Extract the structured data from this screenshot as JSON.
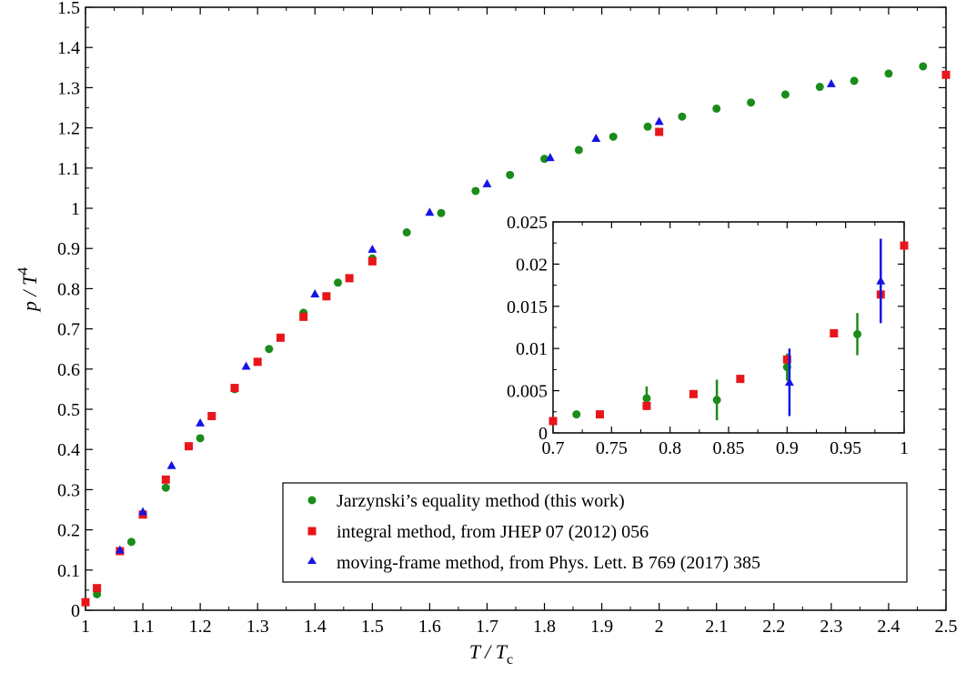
{
  "chart_data": [
    {
      "type": "scatter",
      "xlabel": {
        "main": "T / T",
        "sub": "c"
      },
      "ylabel": {
        "main": "p / T",
        "sup": "4"
      },
      "xlim": [
        1.0,
        2.5
      ],
      "ylim": [
        0,
        1.5
      ],
      "xticks": [
        "1",
        "1.1",
        "1.2",
        "1.3",
        "1.4",
        "1.5",
        "1.6",
        "1.7",
        "1.8",
        "1.9",
        "2",
        "2.1",
        "2.2",
        "2.3",
        "2.4",
        "2.5"
      ],
      "yticks": [
        "0",
        "0.1",
        "0.2",
        "0.3",
        "0.4",
        "0.5",
        "0.6",
        "0.7",
        "0.8",
        "0.9",
        "1",
        "1.1",
        "1.2",
        "1.3",
        "1.4",
        "1.5"
      ],
      "grid": false,
      "legend_position": "lower-right",
      "series": [
        {
          "name": "Jarzynski’s equality method (this work)",
          "marker": "circle",
          "color": "#1a8c1a",
          "x": [
            1.02,
            1.08,
            1.14,
            1.2,
            1.26,
            1.32,
            1.38,
            1.44,
            1.5,
            1.56,
            1.62,
            1.68,
            1.74,
            1.8,
            1.86,
            1.92,
            1.98,
            2.04,
            2.1,
            2.16,
            2.22,
            2.28,
            2.34,
            2.4,
            2.46
          ],
          "y": [
            0.04,
            0.17,
            0.305,
            0.428,
            0.55,
            0.65,
            0.74,
            0.815,
            0.875,
            0.94,
            0.988,
            1.043,
            1.083,
            1.123,
            1.145,
            1.178,
            1.203,
            1.228,
            1.248,
            1.263,
            1.283,
            1.302,
            1.317,
            1.335,
            1.353
          ]
        },
        {
          "name": "integral method, from JHEP 07 (2012) 056",
          "marker": "square",
          "color": "#e8161b",
          "x": [
            1.0,
            1.02,
            1.06,
            1.1,
            1.14,
            1.18,
            1.22,
            1.26,
            1.3,
            1.34,
            1.38,
            1.42,
            1.46,
            1.5,
            2.0,
            2.5
          ],
          "y": [
            0.02,
            0.055,
            0.147,
            0.238,
            0.325,
            0.408,
            0.483,
            0.553,
            0.618,
            0.678,
            0.73,
            0.781,
            0.826,
            0.868,
            1.19,
            1.332
          ]
        },
        {
          "name": "moving-frame method, from Phys. Lett. B 769 (2017) 385",
          "marker": "triangle",
          "color": "#1414e6",
          "x": [
            1.06,
            1.1,
            1.15,
            1.2,
            1.28,
            1.4,
            1.5,
            1.6,
            1.7,
            1.81,
            1.89,
            2.0,
            2.3
          ],
          "y": [
            0.15,
            0.245,
            0.36,
            0.466,
            0.607,
            0.787,
            0.898,
            0.99,
            1.061,
            1.126,
            1.174,
            1.216,
            1.31
          ]
        }
      ]
    },
    {
      "type": "scatter",
      "xlim": [
        0.7,
        1.0
      ],
      "ylim": [
        0,
        0.025
      ],
      "xticks": [
        "0.7",
        "0.75",
        "0.8",
        "0.85",
        "0.9",
        "0.95",
        "1"
      ],
      "yticks": [
        "0",
        "0.005",
        "0.01",
        "0.015",
        "0.02",
        "0.025"
      ],
      "grid": false,
      "series": [
        {
          "name": "Jarzynski’s equality method (this work)",
          "marker": "circle",
          "color": "#1a8c1a",
          "x": [
            0.72,
            0.78,
            0.84,
            0.9,
            0.96
          ],
          "y": [
            0.0022,
            0.0041,
            0.0039,
            0.0078,
            0.0117
          ],
          "err": [
            0.0,
            0.0014,
            0.0024,
            0.0016,
            0.0025
          ]
        },
        {
          "name": "integral method, from JHEP 07 (2012) 056",
          "marker": "square",
          "color": "#e8161b",
          "x": [
            0.7,
            0.74,
            0.78,
            0.82,
            0.86,
            0.9,
            0.94,
            0.98,
            1.0
          ],
          "y": [
            0.0014,
            0.0022,
            0.0032,
            0.0046,
            0.0064,
            0.0087,
            0.0118,
            0.0164,
            0.0222
          ],
          "err": [
            0,
            0,
            0,
            0,
            0,
            0,
            0,
            0,
            0
          ]
        },
        {
          "name": "moving-frame method, from Phys. Lett. B 769 (2017) 385",
          "marker": "triangle",
          "color": "#1414e6",
          "x": [
            0.902,
            0.98
          ],
          "y": [
            0.006,
            0.018
          ],
          "err": [
            0.004,
            0.005
          ]
        }
      ]
    }
  ]
}
